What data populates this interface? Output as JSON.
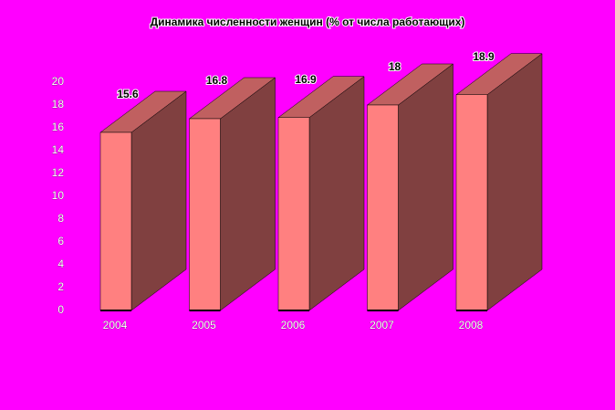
{
  "chart_data": {
    "type": "bar3d",
    "title": "Динамика численности женщин (% от числа работающих)",
    "categories": [
      "2004",
      "2005",
      "2006",
      "2007",
      "2008"
    ],
    "values": [
      15.6,
      16.8,
      16.9,
      18,
      18.9
    ],
    "color": "#ff8080",
    "ylim": [
      0,
      20
    ],
    "yticks": [
      0,
      2,
      4,
      6,
      8,
      10,
      12,
      14,
      16,
      18,
      20
    ],
    "grid": false
  }
}
